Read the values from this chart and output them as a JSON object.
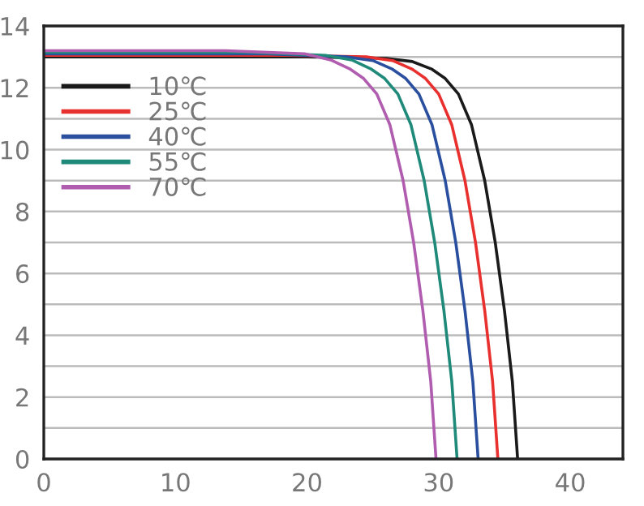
{
  "chart_data": {
    "type": "line",
    "series": [
      {
        "name": "10℃",
        "color": "#1a1a1a",
        "x": [
          0,
          20,
          26,
          28,
          29.5,
          30.5,
          31.5,
          32.5,
          33.5,
          34.3,
          35,
          35.6,
          36.0
        ],
        "values": [
          13.0,
          13.0,
          12.95,
          12.85,
          12.6,
          12.3,
          11.8,
          10.8,
          9.0,
          7.0,
          4.8,
          2.5,
          0
        ]
      },
      {
        "name": "25℃",
        "color": "#e8312e",
        "x": [
          0,
          18.5,
          24.5,
          26.5,
          28,
          29,
          30,
          31,
          32,
          32.8,
          33.5,
          34.1,
          34.5
        ],
        "values": [
          13.05,
          13.05,
          13.0,
          12.88,
          12.6,
          12.3,
          11.8,
          10.8,
          9.0,
          7.0,
          4.8,
          2.5,
          0
        ]
      },
      {
        "name": "40℃",
        "color": "#2a4f9e",
        "x": [
          0,
          17,
          23,
          25,
          26.5,
          27.5,
          28.5,
          29.5,
          30.5,
          31.3,
          32,
          32.6,
          33.0
        ],
        "values": [
          13.1,
          13.1,
          13.0,
          12.88,
          12.6,
          12.3,
          11.8,
          10.8,
          9.0,
          7.0,
          4.8,
          2.5,
          0
        ]
      },
      {
        "name": "55℃",
        "color": "#1f8a7a",
        "x": [
          0,
          15.4,
          21.4,
          23.4,
          24.9,
          25.9,
          26.9,
          27.9,
          28.9,
          29.7,
          30.4,
          31.0,
          31.4
        ],
        "values": [
          13.15,
          13.15,
          13.05,
          12.9,
          12.6,
          12.3,
          11.8,
          10.8,
          9.0,
          7.0,
          4.8,
          2.5,
          0
        ]
      },
      {
        "name": "70℃",
        "color": "#b05db0",
        "x": [
          0,
          13.8,
          19.8,
          21.8,
          23.3,
          24.3,
          25.3,
          26.3,
          27.3,
          28.1,
          28.8,
          29.4,
          29.8
        ],
        "values": [
          13.2,
          13.2,
          13.1,
          12.9,
          12.6,
          12.3,
          11.8,
          10.8,
          9.0,
          7.0,
          4.8,
          2.5,
          0
        ]
      }
    ],
    "xlim": [
      0,
      44
    ],
    "xticks": [
      0,
      10,
      20,
      30,
      40
    ],
    "ylim": [
      0,
      14
    ],
    "yticks": [
      0,
      {
        "value": 1,
        "label": null
      },
      2,
      {
        "value": 3,
        "label": null
      },
      4,
      {
        "value": 5,
        "label": null
      },
      6,
      {
        "value": 7,
        "label": null
      },
      8,
      {
        "value": 9,
        "label": null
      },
      10,
      {
        "value": 11,
        "label": null
      },
      12,
      {
        "value": 13,
        "label": null
      },
      14
    ],
    "grid": "y",
    "legend": "top left",
    "marker": "none",
    "line_style": "solid"
  }
}
